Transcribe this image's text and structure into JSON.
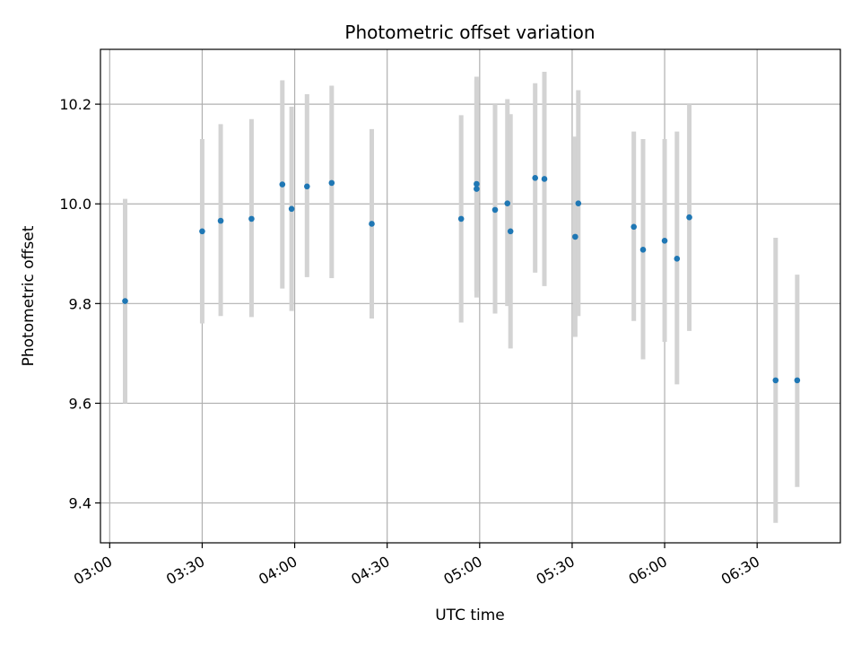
{
  "chart_data": {
    "type": "scatter",
    "title": "Photometric offset variation",
    "xlabel": "UTC time",
    "ylabel": "Photometric offset",
    "x_ticks": [
      "03:00",
      "03:30",
      "04:00",
      "04:30",
      "05:00",
      "05:30",
      "06:00",
      "06:30"
    ],
    "xlim": [
      "02:57",
      "06:57"
    ],
    "y_ticks": [
      "9.4",
      "9.6",
      "9.8",
      "10.0",
      "10.2"
    ],
    "ylim": [
      9.32,
      10.31
    ],
    "grid": true,
    "colors": {
      "point": "#1f77b4",
      "error_bar": "#d3d3d3",
      "grid": "#b0b0b0"
    },
    "series": [
      {
        "points": [
          {
            "x": "03:05",
            "y": 9.805,
            "ylow": 9.6,
            "yhigh": 10.01
          },
          {
            "x": "03:30",
            "y": 9.945,
            "ylow": 9.76,
            "yhigh": 10.13
          },
          {
            "x": "03:36",
            "y": 9.966,
            "ylow": 9.775,
            "yhigh": 10.16
          },
          {
            "x": "03:46",
            "y": 9.97,
            "ylow": 9.773,
            "yhigh": 10.17
          },
          {
            "x": "03:56",
            "y": 10.039,
            "ylow": 9.83,
            "yhigh": 10.248
          },
          {
            "x": "03:59",
            "y": 9.99,
            "ylow": 9.785,
            "yhigh": 10.195
          },
          {
            "x": "04:04",
            "y": 10.035,
            "ylow": 9.853,
            "yhigh": 10.22
          },
          {
            "x": "04:12",
            "y": 10.042,
            "ylow": 9.851,
            "yhigh": 10.237
          },
          {
            "x": "04:25",
            "y": 9.96,
            "ylow": 9.77,
            "yhigh": 10.15
          },
          {
            "x": "04:54",
            "y": 9.97,
            "ylow": 9.762,
            "yhigh": 10.178
          },
          {
            "x": "04:59",
            "y": 10.04,
            "ylow": 9.825,
            "yhigh": 10.255
          },
          {
            "x": "04:59",
            "y": 10.03,
            "ylow": 9.812,
            "yhigh": 10.248
          },
          {
            "x": "05:05",
            "y": 9.988,
            "ylow": 9.78,
            "yhigh": 10.2
          },
          {
            "x": "05:09",
            "y": 10.001,
            "ylow": 9.795,
            "yhigh": 10.21
          },
          {
            "x": "05:10",
            "y": 9.945,
            "ylow": 9.71,
            "yhigh": 10.18
          },
          {
            "x": "05:18",
            "y": 10.052,
            "ylow": 9.862,
            "yhigh": 10.242
          },
          {
            "x": "05:21",
            "y": 10.05,
            "ylow": 9.835,
            "yhigh": 10.265
          },
          {
            "x": "05:31",
            "y": 9.934,
            "ylow": 9.733,
            "yhigh": 10.135
          },
          {
            "x": "05:32",
            "y": 10.001,
            "ylow": 9.775,
            "yhigh": 10.228
          },
          {
            "x": "05:50",
            "y": 9.954,
            "ylow": 9.765,
            "yhigh": 10.145
          },
          {
            "x": "05:53",
            "y": 9.908,
            "ylow": 9.688,
            "yhigh": 10.13
          },
          {
            "x": "06:00",
            "y": 9.926,
            "ylow": 9.723,
            "yhigh": 10.13
          },
          {
            "x": "06:04",
            "y": 9.89,
            "ylow": 9.638,
            "yhigh": 10.145
          },
          {
            "x": "06:08",
            "y": 9.973,
            "ylow": 9.745,
            "yhigh": 10.2
          },
          {
            "x": "06:36",
            "y": 9.646,
            "ylow": 9.36,
            "yhigh": 9.932
          },
          {
            "x": "06:43",
            "y": 9.646,
            "ylow": 9.432,
            "yhigh": 9.858
          }
        ]
      }
    ]
  }
}
